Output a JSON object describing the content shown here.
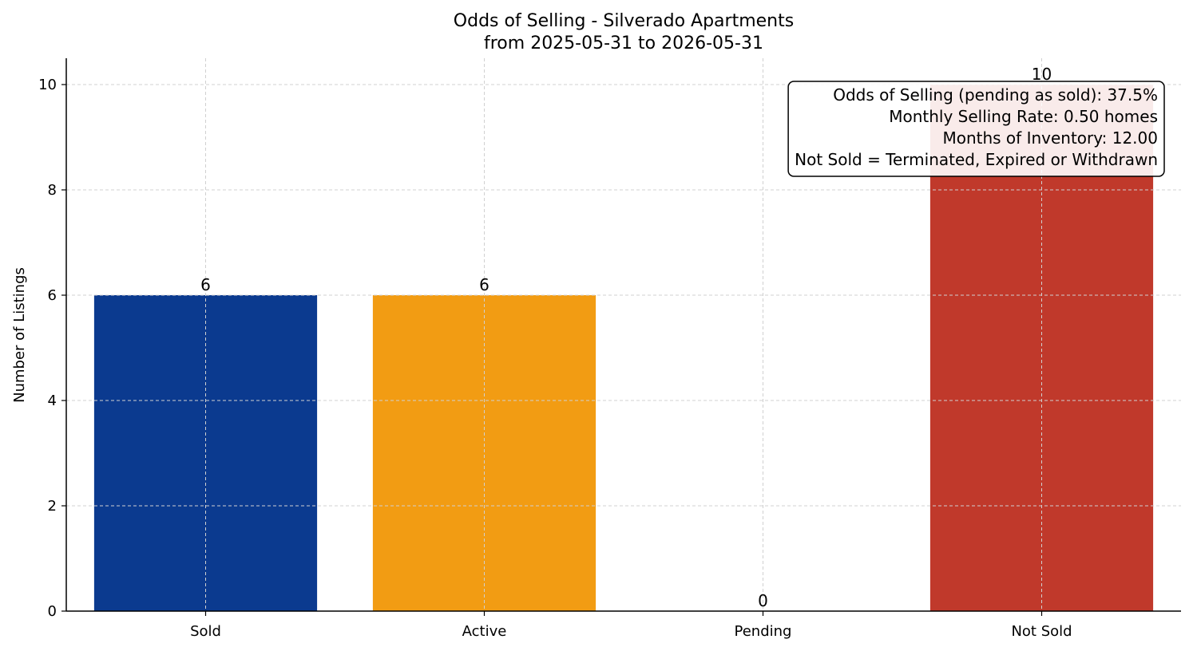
{
  "chart_data": {
    "type": "bar",
    "title": "Odds of Selling - Silverado Apartments",
    "subtitle": "from 2025-05-31 to 2026-05-31",
    "xlabel": "",
    "ylabel": "Number of Listings",
    "categories": [
      "Sold",
      "Active",
      "Pending",
      "Not Sold"
    ],
    "values": [
      6,
      6,
      0,
      10
    ],
    "colors": [
      "#0b3a8f",
      "#f29c13",
      "#f2f2f2",
      "#c0392b"
    ],
    "ylim": [
      0,
      10.5
    ],
    "yticks": [
      0,
      2,
      4,
      6,
      8,
      10
    ],
    "grid": true,
    "annotation": {
      "lines": [
        "Odds of Selling (pending as sold): 37.5%",
        "Monthly Selling Rate: 0.50 homes",
        "Months of Inventory: 12.00",
        "Not Sold = Terminated, Expired or Withdrawn"
      ],
      "placement": "top-right"
    }
  }
}
